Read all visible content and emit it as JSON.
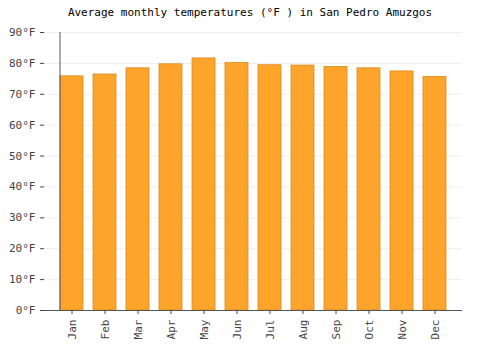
{
  "chart_data": {
    "type": "bar",
    "title": "Average monthly temperatures (°F ) in San Pedro Amuzgos",
    "categories": [
      "Jan",
      "Feb",
      "Mar",
      "Apr",
      "May",
      "Jun",
      "Jul",
      "Aug",
      "Sep",
      "Oct",
      "Nov",
      "Dec"
    ],
    "values": [
      75.8,
      76.4,
      78.4,
      79.7,
      81.6,
      80.1,
      79.4,
      79.3,
      78.8,
      78.4,
      77.4,
      75.6
    ],
    "color": "#ffa42b",
    "ylim": [
      0,
      90
    ],
    "yticks": [
      {
        "value": 0,
        "label": "0°F"
      },
      {
        "value": 10,
        "label": "10°F"
      },
      {
        "value": 20,
        "label": "20°F"
      },
      {
        "value": 30,
        "label": "30°F"
      },
      {
        "value": 40,
        "label": "40°F"
      },
      {
        "value": 50,
        "label": "50°F"
      },
      {
        "value": 60,
        "label": "60°F"
      },
      {
        "value": 70,
        "label": "70°F"
      },
      {
        "value": 80,
        "label": "80°F"
      },
      {
        "value": 90,
        "label": "90°F"
      }
    ],
    "grid": true
  }
}
